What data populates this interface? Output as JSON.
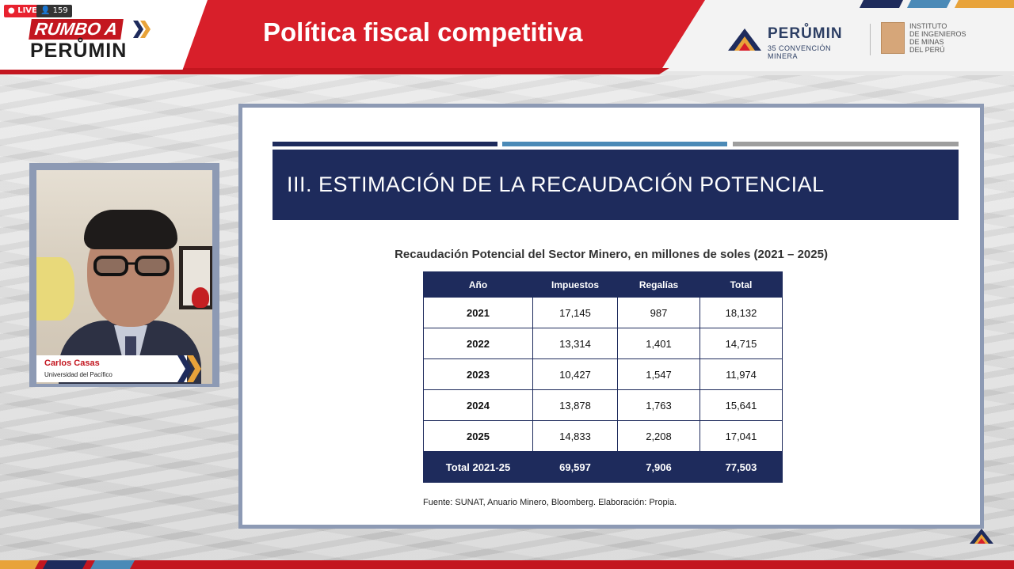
{
  "stream": {
    "live_label": "● LIVE",
    "viewer_count": "159"
  },
  "branding": {
    "rumbo_line1": "RUMBO A",
    "rumbo_line2": "PERŮMIN",
    "perumin_name": "PERŮMIN",
    "perumin_sub": "35 CONVENCIÓN MINERA",
    "iimp_lines": [
      "INSTITUTO",
      "DE INGENIEROS",
      "DE MINAS",
      "DEL PERÚ"
    ],
    "colors": {
      "red": "#d81f2a",
      "navy": "#1e2b5c",
      "accent_blue": "#4b8ab7",
      "orange": "#e8a33a"
    }
  },
  "header": {
    "title": "Política fiscal competitiva"
  },
  "speaker": {
    "name": "Carlos Casas",
    "affiliation": "Universidad del Pacífico"
  },
  "slide": {
    "heading": "III. ESTIMACIÓN DE LA RECAUDACIÓN POTENCIAL",
    "table_caption": "Recaudación Potencial del Sector Minero, en millones de soles (2021 – 2025)",
    "columns": [
      "Año",
      "Impuestos",
      "Regalías",
      "Total"
    ],
    "rows": [
      {
        "year": "2021",
        "impuestos": "17,145",
        "regalias": "987",
        "total": "18,132"
      },
      {
        "year": "2022",
        "impuestos": "13,314",
        "regalias": "1,401",
        "total": "14,715"
      },
      {
        "year": "2023",
        "impuestos": "10,427",
        "regalias": "1,547",
        "total": "11,974"
      },
      {
        "year": "2024",
        "impuestos": "13,878",
        "regalias": "1,763",
        "total": "15,641"
      },
      {
        "year": "2025",
        "impuestos": "14,833",
        "regalias": "2,208",
        "total": "17,041"
      }
    ],
    "total_row": {
      "year": "Total 2021-25",
      "impuestos": "69,597",
      "regalias": "7,906",
      "total": "77,503"
    },
    "source": "Fuente: SUNAT, Anuario Minero, Bloomberg. Elaboración: Propia."
  }
}
